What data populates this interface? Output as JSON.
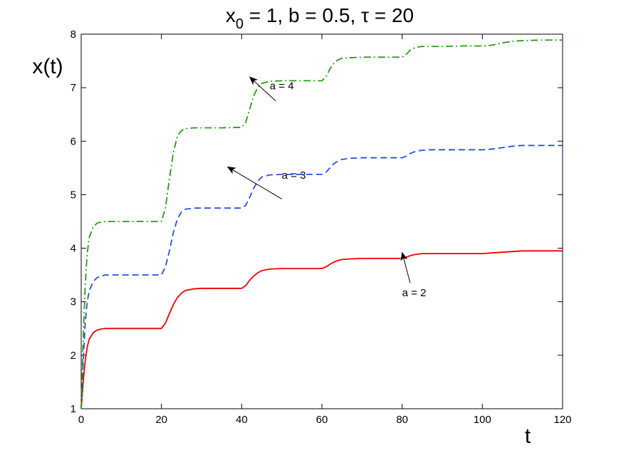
{
  "chart_data": {
    "type": "line",
    "title": {
      "base": "x",
      "subscript": "0",
      "rest": " = 1, b = 0.5, τ = 20"
    },
    "xlabel": "t",
    "ylabel": "x(t)",
    "xlim": [
      0,
      120
    ],
    "ylim": [
      1,
      8
    ],
    "xticks": [
      0,
      20,
      40,
      60,
      80,
      100,
      120
    ],
    "yticks": [
      1,
      2,
      3,
      4,
      5,
      6,
      7,
      8
    ],
    "grid": false,
    "series": [
      {
        "name": "a = 2",
        "color": "#ee0000",
        "dash": "solid",
        "x": [
          0,
          0.5,
          1,
          1.5,
          2,
          3,
          4,
          5,
          6,
          8,
          10,
          15,
          20,
          21,
          22,
          23,
          24,
          25,
          26,
          28,
          30,
          35,
          40,
          41,
          42,
          43,
          44,
          45,
          47,
          50,
          55,
          60,
          61,
          62,
          63,
          64,
          65,
          67,
          70,
          75,
          80,
          81,
          82,
          83,
          84,
          85,
          87,
          90,
          95,
          100,
          102,
          104,
          106,
          108,
          110,
          115,
          120
        ],
        "y": [
          1.0,
          1.5,
          1.9,
          2.15,
          2.3,
          2.42,
          2.47,
          2.49,
          2.5,
          2.5,
          2.5,
          2.5,
          2.5,
          2.6,
          2.78,
          2.95,
          3.08,
          3.16,
          3.21,
          3.24,
          3.25,
          3.25,
          3.25,
          3.3,
          3.4,
          3.48,
          3.54,
          3.58,
          3.61,
          3.62,
          3.62,
          3.62,
          3.65,
          3.7,
          3.74,
          3.77,
          3.79,
          3.8,
          3.81,
          3.81,
          3.81,
          3.83,
          3.86,
          3.88,
          3.89,
          3.9,
          3.9,
          3.9,
          3.9,
          3.9,
          3.91,
          3.92,
          3.93,
          3.94,
          3.95,
          3.95,
          3.95
        ]
      },
      {
        "name": "a = 3",
        "color": "#2a4fe0",
        "dash": "dashed",
        "x": [
          0,
          0.5,
          1,
          1.5,
          2,
          3,
          4,
          5,
          6,
          8,
          10,
          15,
          20,
          21,
          22,
          23,
          24,
          25,
          26,
          28,
          30,
          35,
          40,
          41,
          42,
          43,
          44,
          45,
          47,
          50,
          55,
          60,
          61,
          62,
          63,
          64,
          65,
          67,
          70,
          75,
          80,
          81,
          82,
          83,
          84,
          85,
          87,
          90,
          95,
          100,
          102,
          104,
          106,
          108,
          110,
          115,
          120
        ],
        "y": [
          1.0,
          1.9,
          2.6,
          3.0,
          3.2,
          3.38,
          3.45,
          3.48,
          3.5,
          3.5,
          3.5,
          3.5,
          3.5,
          3.65,
          3.95,
          4.3,
          4.55,
          4.68,
          4.73,
          4.75,
          4.75,
          4.75,
          4.75,
          4.8,
          4.95,
          5.12,
          5.25,
          5.33,
          5.37,
          5.38,
          5.38,
          5.38,
          5.42,
          5.5,
          5.58,
          5.63,
          5.66,
          5.68,
          5.69,
          5.69,
          5.69,
          5.72,
          5.77,
          5.8,
          5.82,
          5.83,
          5.84,
          5.84,
          5.84,
          5.84,
          5.85,
          5.87,
          5.89,
          5.91,
          5.92,
          5.92,
          5.92
        ]
      },
      {
        "name": "a = 4",
        "color": "#22a00e",
        "dash": "dashdot",
        "x": [
          0,
          0.5,
          1,
          1.5,
          2,
          3,
          4,
          5,
          6,
          8,
          10,
          15,
          20,
          21,
          22,
          23,
          24,
          25,
          26,
          28,
          30,
          35,
          40,
          41,
          42,
          43,
          44,
          45,
          47,
          50,
          55,
          60,
          61,
          62,
          63,
          64,
          65,
          67,
          70,
          75,
          80,
          81,
          82,
          83,
          84,
          85,
          87,
          90,
          95,
          100,
          102,
          104,
          106,
          108,
          110,
          115,
          120
        ],
        "y": [
          1.0,
          2.3,
          3.3,
          3.9,
          4.2,
          4.4,
          4.47,
          4.49,
          4.5,
          4.5,
          4.5,
          4.5,
          4.5,
          4.75,
          5.3,
          5.8,
          6.1,
          6.2,
          6.23,
          6.25,
          6.25,
          6.25,
          6.26,
          6.35,
          6.6,
          6.85,
          7.0,
          7.08,
          7.12,
          7.13,
          7.13,
          7.13,
          7.2,
          7.35,
          7.46,
          7.52,
          7.55,
          7.56,
          7.57,
          7.57,
          7.57,
          7.62,
          7.7,
          7.74,
          7.76,
          7.77,
          7.77,
          7.77,
          7.78,
          7.78,
          7.79,
          7.82,
          7.85,
          7.87,
          7.88,
          7.89,
          7.89
        ]
      }
    ],
    "annotations": [
      {
        "text": "a = 4",
        "label_at": [
          50,
          6.97
        ],
        "tail": [
          48.5,
          6.75
        ],
        "head": [
          42.0,
          7.2
        ]
      },
      {
        "text": "a = 3",
        "label_at": [
          53,
          5.3
        ],
        "tail": [
          50.0,
          4.92
        ],
        "head": [
          36.5,
          5.52
        ]
      },
      {
        "text": "a = 2",
        "label_at": [
          83,
          3.1
        ],
        "tail": [
          82.0,
          3.35
        ],
        "head": [
          80.0,
          3.92
        ]
      }
    ]
  }
}
